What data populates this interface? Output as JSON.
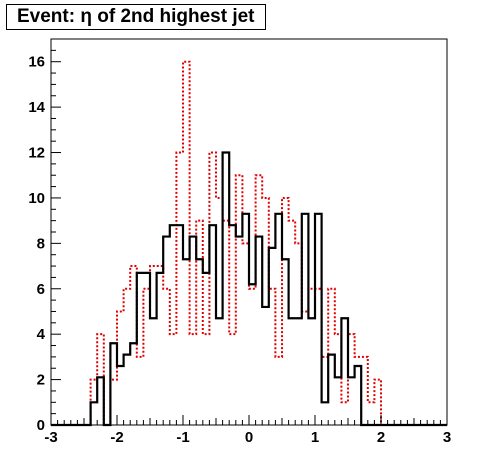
{
  "chart_data": {
    "type": "histogram",
    "title": "Event: η of 2nd highest jet",
    "xlabel": "",
    "ylabel": "",
    "xlim": [
      -3,
      3
    ],
    "ylim": [
      0,
      17
    ],
    "x_ticks": [
      -3,
      -2,
      -1,
      0,
      1,
      2,
      3
    ],
    "x_tick_labels": [
      "-3",
      "-2",
      "-1",
      "0",
      "1",
      "2",
      "3"
    ],
    "y_ticks": [
      0,
      2,
      4,
      6,
      8,
      10,
      12,
      14,
      16
    ],
    "y_tick_labels": [
      "0",
      "2",
      "4",
      "6",
      "8",
      "10",
      "12",
      "14",
      "16"
    ],
    "bin_edges": [
      -3.0,
      -2.9,
      -2.8,
      -2.7,
      -2.6,
      -2.5,
      -2.4,
      -2.3,
      -2.2,
      -2.1,
      -2.0,
      -1.9,
      -1.8,
      -1.7,
      -1.6,
      -1.5,
      -1.4,
      -1.3,
      -1.2,
      -1.1,
      -1.0,
      -0.9,
      -0.8,
      -0.7,
      -0.6,
      -0.5,
      -0.4,
      -0.3,
      -0.2,
      -0.1,
      0.0,
      0.1,
      0.2,
      0.3,
      0.4,
      0.5,
      0.6,
      0.7,
      0.8,
      0.9,
      1.0,
      1.1,
      1.2,
      1.3,
      1.4,
      1.5,
      1.6,
      1.7,
      1.8,
      1.9,
      2.0,
      2.1,
      2.2,
      2.3,
      2.4,
      2.5,
      2.6,
      2.7,
      2.8,
      2.9,
      3.0
    ],
    "grid": false,
    "legend": "none",
    "series": [
      {
        "style": "solid",
        "color": "#000000",
        "values": [
          0,
          0,
          0,
          0,
          0,
          0,
          1,
          2.1,
          0,
          3.6,
          2.6,
          3.1,
          3.6,
          6.7,
          6.7,
          4.7,
          6.7,
          8.3,
          8.8,
          8.8,
          7.3,
          8.3,
          7.3,
          6.7,
          8.8,
          4.7,
          12,
          8.8,
          8.3,
          9.3,
          6.2,
          8.3,
          5.2,
          7.8,
          9.3,
          7.3,
          4.7,
          4.7,
          9.3,
          4.7,
          9.3,
          1,
          3.1,
          2.1,
          4.7,
          2.1,
          2.6,
          0,
          0,
          0,
          0,
          0,
          0,
          0,
          0,
          0,
          0,
          0,
          0,
          0
        ]
      },
      {
        "style": "dashed",
        "color": "#e00000",
        "values": [
          0,
          0,
          0,
          0,
          0,
          0,
          2,
          4,
          0,
          2,
          5,
          6,
          7,
          3,
          6,
          7,
          7,
          6,
          4,
          12,
          16,
          4,
          9,
          4,
          12,
          10,
          9,
          4,
          11,
          8,
          6,
          11,
          10,
          6,
          3,
          10,
          9,
          8,
          5,
          6,
          6,
          3,
          6,
          4,
          1,
          4,
          3,
          3,
          1,
          2,
          0,
          0,
          0,
          0,
          0,
          0,
          0,
          0,
          0,
          0
        ]
      }
    ]
  }
}
